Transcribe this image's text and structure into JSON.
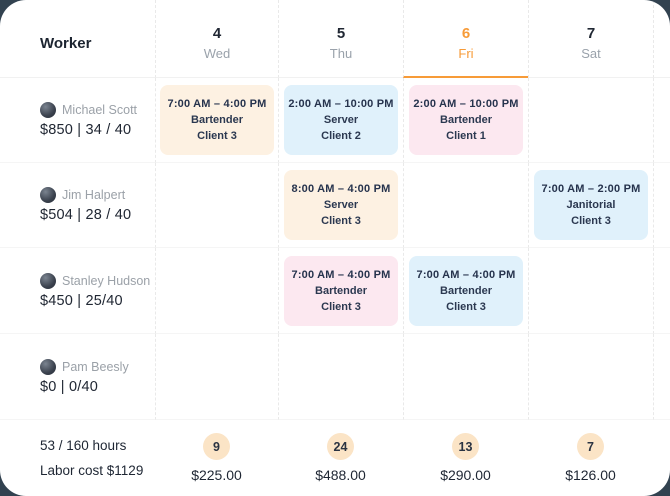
{
  "theme": {
    "page_background": "#324250",
    "card_background": "#ffffff",
    "accent_orange": "#f79b38",
    "chip_cream": "#fdf1e2",
    "chip_blue": "#e0f1fb",
    "chip_pink": "#fce8f0",
    "chip_text": "#26334d",
    "badge_background": "#fbe4c6",
    "muted_text": "#9aa2ab",
    "dark_text": "#1f2733"
  },
  "header": {
    "worker_label": "Worker",
    "days": [
      {
        "num": "4",
        "name": "Wed",
        "active": false
      },
      {
        "num": "5",
        "name": "Thu",
        "active": false
      },
      {
        "num": "6",
        "name": "Fri",
        "active": true
      },
      {
        "num": "7",
        "name": "Sat",
        "active": false
      }
    ]
  },
  "workers": [
    {
      "name": "Michael Scott",
      "stats": "$850 | 34 / 40"
    },
    {
      "name": "Jim Halpert",
      "stats": "$504 | 28 / 40"
    },
    {
      "name": "Stanley Hudson",
      "stats": "$450 | 25/40"
    },
    {
      "name": "Pam Beesly",
      "stats": "$0 | 0/40"
    }
  ],
  "shifts": {
    "r0c0": {
      "time": "7:00 AM – 4:00 PM",
      "role": "Bartender",
      "client": "Client 3",
      "color": "cream"
    },
    "r0c1": {
      "time": "2:00 AM – 10:00 PM",
      "role": "Server",
      "client": "Client 2",
      "color": "blue"
    },
    "r0c2": {
      "time": "2:00 AM – 10:00 PM",
      "role": "Bartender",
      "client": "Client 1",
      "color": "pink"
    },
    "r1c1": {
      "time": "8:00 AM – 4:00 PM",
      "role": "Server",
      "client": "Client 3",
      "color": "cream"
    },
    "r1c3": {
      "time": "7:00 AM – 2:00 PM",
      "role": "Janitorial",
      "client": "Client 3",
      "color": "blue"
    },
    "r2c1": {
      "time": "7:00 AM – 4:00 PM",
      "role": "Bartender",
      "client": "Client 3",
      "color": "pink"
    },
    "r2c2": {
      "time": "7:00 AM – 4:00 PM",
      "role": "Bartender",
      "client": "Client 3",
      "color": "blue"
    }
  },
  "footer": {
    "hours": "53 / 160 hours",
    "labor": "Labor cost $1129",
    "totals": [
      {
        "count": "9",
        "cost": "$225.00"
      },
      {
        "count": "24",
        "cost": "$488.00"
      },
      {
        "count": "13",
        "cost": "$290.00"
      },
      {
        "count": "7",
        "cost": "$126.00"
      }
    ]
  }
}
